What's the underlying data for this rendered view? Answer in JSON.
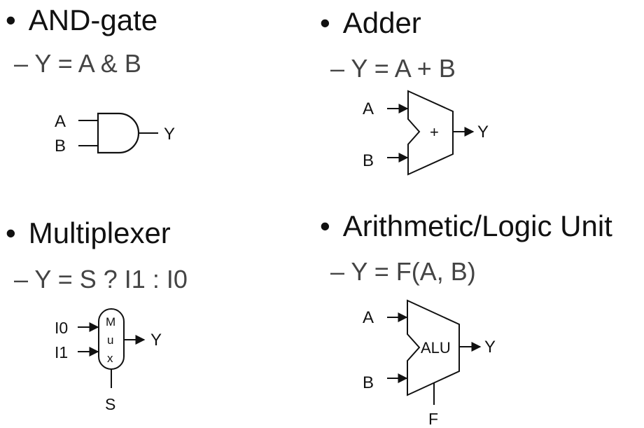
{
  "bullet_glyph": "•",
  "sections": {
    "and_gate": {
      "title": "AND-gate",
      "equation": "– Y = A & B",
      "labels": {
        "a": "A",
        "b": "B",
        "y": "Y"
      }
    },
    "adder": {
      "title": "Adder",
      "equation": "– Y = A + B",
      "labels": {
        "a": "A",
        "b": "B",
        "op": "+",
        "y": "Y"
      }
    },
    "multiplexer": {
      "title": "Multiplexer",
      "equation": "– Y = S ? I1 : I0",
      "labels": {
        "i0": "I0",
        "i1": "I1",
        "m": "M",
        "u": "u",
        "x": "x",
        "y": "Y",
        "s": "S"
      }
    },
    "alu": {
      "title": "Arithmetic/Logic Unit",
      "equation": "– Y = F(A, B)",
      "labels": {
        "a": "A",
        "b": "B",
        "op": "ALU",
        "y": "Y",
        "f": "F"
      }
    }
  }
}
